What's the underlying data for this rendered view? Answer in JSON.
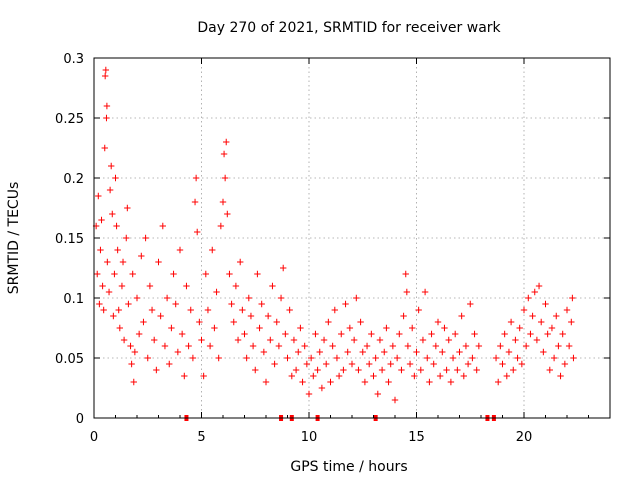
{
  "chart_data": {
    "type": "scatter",
    "title": "Day 270 of 2021, SRMTID for receiver wark",
    "xlabel": "GPS time / hours",
    "ylabel": "SRMTID / TECUs",
    "xlim": [
      0,
      24
    ],
    "ylim": [
      0,
      0.3
    ],
    "x_ticks": [
      0,
      5,
      10,
      15,
      20
    ],
    "x_tick_labels": [
      "0",
      "5",
      "10",
      "15",
      "20"
    ],
    "y_ticks": [
      0,
      0.05,
      0.1,
      0.15,
      0.2,
      0.25,
      0.3
    ],
    "y_tick_labels": [
      "0",
      "0.05",
      "0.1",
      "0.15",
      "0.2",
      "0.25",
      "0.3"
    ],
    "grid": true,
    "marker": "plus",
    "color": "#ff0000",
    "series": [
      {
        "name": "SRMTID",
        "points": [
          [
            0.1,
            0.16
          ],
          [
            0.15,
            0.12
          ],
          [
            0.2,
            0.185
          ],
          [
            0.25,
            0.095
          ],
          [
            0.3,
            0.14
          ],
          [
            0.35,
            0.165
          ],
          [
            0.4,
            0.11
          ],
          [
            0.45,
            0.09
          ],
          [
            0.5,
            0.225
          ],
          [
            0.52,
            0.285
          ],
          [
            0.55,
            0.29
          ],
          [
            0.58,
            0.25
          ],
          [
            0.6,
            0.26
          ],
          [
            0.62,
            0.13
          ],
          [
            0.7,
            0.105
          ],
          [
            0.75,
            0.19
          ],
          [
            0.8,
            0.21
          ],
          [
            0.85,
            0.17
          ],
          [
            0.9,
            0.085
          ],
          [
            0.95,
            0.12
          ],
          [
            1.0,
            0.2
          ],
          [
            1.05,
            0.16
          ],
          [
            1.1,
            0.14
          ],
          [
            1.15,
            0.09
          ],
          [
            1.2,
            0.075
          ],
          [
            1.3,
            0.11
          ],
          [
            1.35,
            0.13
          ],
          [
            1.4,
            0.065
          ],
          [
            1.5,
            0.15
          ],
          [
            1.55,
            0.175
          ],
          [
            1.6,
            0.095
          ],
          [
            1.7,
            0.06
          ],
          [
            1.75,
            0.045
          ],
          [
            1.8,
            0.12
          ],
          [
            1.85,
            0.03
          ],
          [
            1.9,
            0.055
          ],
          [
            2.0,
            0.1
          ],
          [
            2.1,
            0.07
          ],
          [
            2.2,
            0.135
          ],
          [
            2.3,
            0.08
          ],
          [
            2.4,
            0.15
          ],
          [
            2.5,
            0.05
          ],
          [
            2.6,
            0.11
          ],
          [
            2.7,
            0.09
          ],
          [
            2.8,
            0.065
          ],
          [
            2.9,
            0.04
          ],
          [
            3.0,
            0.13
          ],
          [
            3.1,
            0.085
          ],
          [
            3.2,
            0.16
          ],
          [
            3.3,
            0.06
          ],
          [
            3.4,
            0.1
          ],
          [
            3.5,
            0.045
          ],
          [
            3.6,
            0.075
          ],
          [
            3.7,
            0.12
          ],
          [
            3.8,
            0.095
          ],
          [
            3.9,
            0.055
          ],
          [
            4.0,
            0.14
          ],
          [
            4.1,
            0.07
          ],
          [
            4.2,
            0.035
          ],
          [
            4.3,
            0.11
          ],
          [
            4.4,
            0.06
          ],
          [
            4.5,
            0.09
          ],
          [
            4.6,
            0.05
          ],
          [
            4.7,
            0.18
          ],
          [
            4.75,
            0.2
          ],
          [
            4.8,
            0.155
          ],
          [
            4.9,
            0.08
          ],
          [
            5.0,
            0.065
          ],
          [
            5.1,
            0.035
          ],
          [
            5.2,
            0.12
          ],
          [
            5.3,
            0.09
          ],
          [
            5.4,
            0.06
          ],
          [
            5.5,
            0.14
          ],
          [
            5.6,
            0.075
          ],
          [
            5.7,
            0.105
          ],
          [
            5.8,
            0.05
          ],
          [
            5.9,
            0.16
          ],
          [
            6.0,
            0.18
          ],
          [
            6.05,
            0.22
          ],
          [
            6.1,
            0.2
          ],
          [
            6.15,
            0.23
          ],
          [
            6.2,
            0.17
          ],
          [
            6.3,
            0.12
          ],
          [
            6.4,
            0.095
          ],
          [
            6.5,
            0.08
          ],
          [
            6.6,
            0.11
          ],
          [
            6.7,
            0.065
          ],
          [
            6.8,
            0.13
          ],
          [
            6.9,
            0.09
          ],
          [
            7.0,
            0.07
          ],
          [
            7.1,
            0.05
          ],
          [
            7.2,
            0.1
          ],
          [
            7.3,
            0.085
          ],
          [
            7.4,
            0.06
          ],
          [
            7.5,
            0.04
          ],
          [
            7.6,
            0.12
          ],
          [
            7.7,
            0.075
          ],
          [
            7.8,
            0.095
          ],
          [
            7.9,
            0.055
          ],
          [
            8.0,
            0.03
          ],
          [
            8.1,
            0.085
          ],
          [
            8.2,
            0.065
          ],
          [
            8.3,
            0.11
          ],
          [
            8.4,
            0.045
          ],
          [
            8.5,
            0.08
          ],
          [
            8.6,
            0.06
          ],
          [
            8.7,
            0.1
          ],
          [
            8.8,
            0.125
          ],
          [
            8.9,
            0.07
          ],
          [
            9.0,
            0.05
          ],
          [
            9.1,
            0.09
          ],
          [
            9.2,
            0.035
          ],
          [
            9.3,
            0.065
          ],
          [
            9.4,
            0.04
          ],
          [
            9.5,
            0.055
          ],
          [
            9.6,
            0.075
          ],
          [
            9.7,
            0.03
          ],
          [
            9.8,
            0.06
          ],
          [
            9.9,
            0.045
          ],
          [
            10.0,
            0.02
          ],
          [
            10.1,
            0.05
          ],
          [
            10.2,
            0.035
          ],
          [
            10.3,
            0.07
          ],
          [
            10.4,
            0.04
          ],
          [
            10.5,
            0.055
          ],
          [
            10.6,
            0.025
          ],
          [
            10.7,
            0.065
          ],
          [
            10.8,
            0.045
          ],
          [
            10.9,
            0.08
          ],
          [
            11.0,
            0.03
          ],
          [
            11.1,
            0.06
          ],
          [
            11.2,
            0.09
          ],
          [
            11.3,
            0.05
          ],
          [
            11.4,
            0.035
          ],
          [
            11.5,
            0.07
          ],
          [
            11.6,
            0.04
          ],
          [
            11.7,
            0.095
          ],
          [
            11.8,
            0.055
          ],
          [
            11.9,
            0.075
          ],
          [
            12.0,
            0.045
          ],
          [
            12.1,
            0.065
          ],
          [
            12.2,
            0.1
          ],
          [
            12.3,
            0.04
          ],
          [
            12.4,
            0.08
          ],
          [
            12.5,
            0.055
          ],
          [
            12.6,
            0.03
          ],
          [
            12.7,
            0.06
          ],
          [
            12.8,
            0.045
          ],
          [
            12.9,
            0.07
          ],
          [
            13.0,
            0.035
          ],
          [
            13.1,
            0.05
          ],
          [
            13.2,
            0.02
          ],
          [
            13.3,
            0.065
          ],
          [
            13.4,
            0.04
          ],
          [
            13.5,
            0.055
          ],
          [
            13.6,
            0.075
          ],
          [
            13.7,
            0.03
          ],
          [
            13.8,
            0.045
          ],
          [
            13.9,
            0.06
          ],
          [
            14.0,
            0.015
          ],
          [
            14.1,
            0.05
          ],
          [
            14.2,
            0.07
          ],
          [
            14.3,
            0.04
          ],
          [
            14.4,
            0.085
          ],
          [
            14.5,
            0.12
          ],
          [
            14.55,
            0.105
          ],
          [
            14.6,
            0.06
          ],
          [
            14.7,
            0.045
          ],
          [
            14.8,
            0.075
          ],
          [
            14.9,
            0.035
          ],
          [
            15.0,
            0.055
          ],
          [
            15.1,
            0.09
          ],
          [
            15.2,
            0.04
          ],
          [
            15.3,
            0.065
          ],
          [
            15.4,
            0.105
          ],
          [
            15.5,
            0.05
          ],
          [
            15.6,
            0.03
          ],
          [
            15.7,
            0.07
          ],
          [
            15.8,
            0.045
          ],
          [
            15.9,
            0.06
          ],
          [
            16.0,
            0.08
          ],
          [
            16.1,
            0.035
          ],
          [
            16.2,
            0.055
          ],
          [
            16.3,
            0.075
          ],
          [
            16.4,
            0.04
          ],
          [
            16.5,
            0.065
          ],
          [
            16.6,
            0.03
          ],
          [
            16.7,
            0.05
          ],
          [
            16.8,
            0.07
          ],
          [
            16.9,
            0.04
          ],
          [
            17.0,
            0.055
          ],
          [
            17.1,
            0.085
          ],
          [
            17.2,
            0.035
          ],
          [
            17.3,
            0.06
          ],
          [
            17.4,
            0.045
          ],
          [
            17.5,
            0.095
          ],
          [
            17.6,
            0.05
          ],
          [
            17.7,
            0.07
          ],
          [
            17.8,
            0.04
          ],
          [
            17.9,
            0.06
          ],
          [
            18.7,
            0.05
          ],
          [
            18.8,
            0.03
          ],
          [
            18.9,
            0.06
          ],
          [
            19.0,
            0.045
          ],
          [
            19.1,
            0.07
          ],
          [
            19.2,
            0.035
          ],
          [
            19.3,
            0.055
          ],
          [
            19.4,
            0.08
          ],
          [
            19.5,
            0.04
          ],
          [
            19.6,
            0.065
          ],
          [
            19.7,
            0.05
          ],
          [
            19.8,
            0.075
          ],
          [
            19.9,
            0.045
          ],
          [
            20.0,
            0.09
          ],
          [
            20.1,
            0.06
          ],
          [
            20.2,
            0.1
          ],
          [
            20.3,
            0.07
          ],
          [
            20.4,
            0.085
          ],
          [
            20.5,
            0.105
          ],
          [
            20.6,
            0.065
          ],
          [
            20.7,
            0.11
          ],
          [
            20.8,
            0.08
          ],
          [
            20.9,
            0.055
          ],
          [
            21.0,
            0.095
          ],
          [
            21.1,
            0.07
          ],
          [
            21.2,
            0.04
          ],
          [
            21.3,
            0.075
          ],
          [
            21.4,
            0.05
          ],
          [
            21.5,
            0.085
          ],
          [
            21.6,
            0.06
          ],
          [
            21.7,
            0.035
          ],
          [
            21.8,
            0.07
          ],
          [
            21.9,
            0.045
          ],
          [
            22.0,
            0.09
          ],
          [
            22.1,
            0.06
          ],
          [
            22.2,
            0.08
          ],
          [
            22.25,
            0.1
          ],
          [
            22.3,
            0.05
          ]
        ]
      }
    ],
    "zero_markers_x": [
      4.3,
      8.7,
      9.2,
      10.4,
      13.1,
      18.3,
      18.6
    ]
  }
}
